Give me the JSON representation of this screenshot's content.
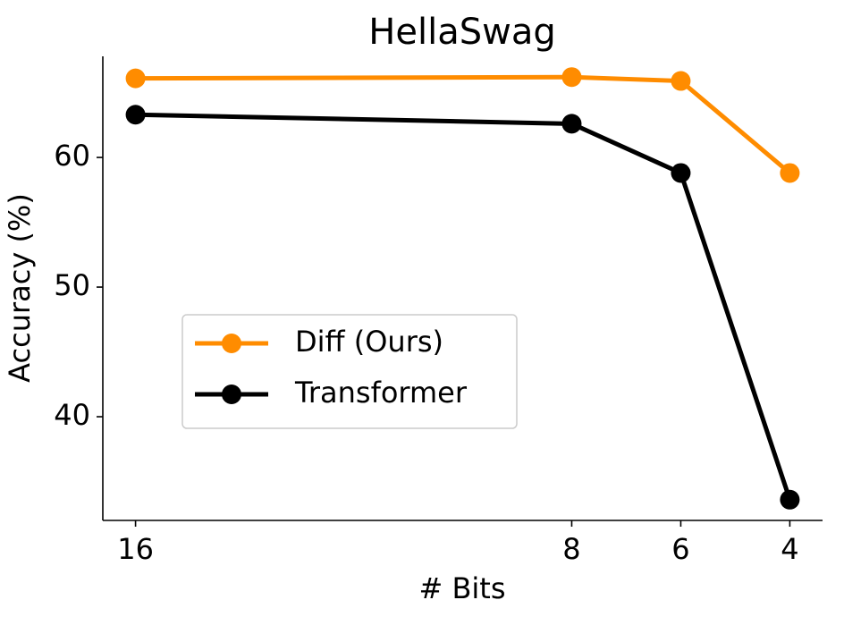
{
  "chart_data": {
    "type": "line",
    "title": "HellaSwag",
    "x_label": "# Bits",
    "y_label": "Accuracy (%)",
    "x": [
      16,
      8,
      6,
      4
    ],
    "series": [
      {
        "name": "Diff (Ours)",
        "color": "#ff8c00",
        "values": [
          66.1,
          66.2,
          65.9,
          58.8
        ]
      },
      {
        "name": "Transformer",
        "color": "#000000",
        "values": [
          63.3,
          62.6,
          58.8,
          33.6
        ]
      }
    ],
    "xlim": [
      16.6,
      3.4
    ],
    "xticks": [
      16,
      8,
      6,
      4
    ],
    "ylim": [
      32.0,
      67.8
    ],
    "yticks": [
      40,
      50,
      60
    ],
    "grid": false,
    "legend": "center left"
  }
}
